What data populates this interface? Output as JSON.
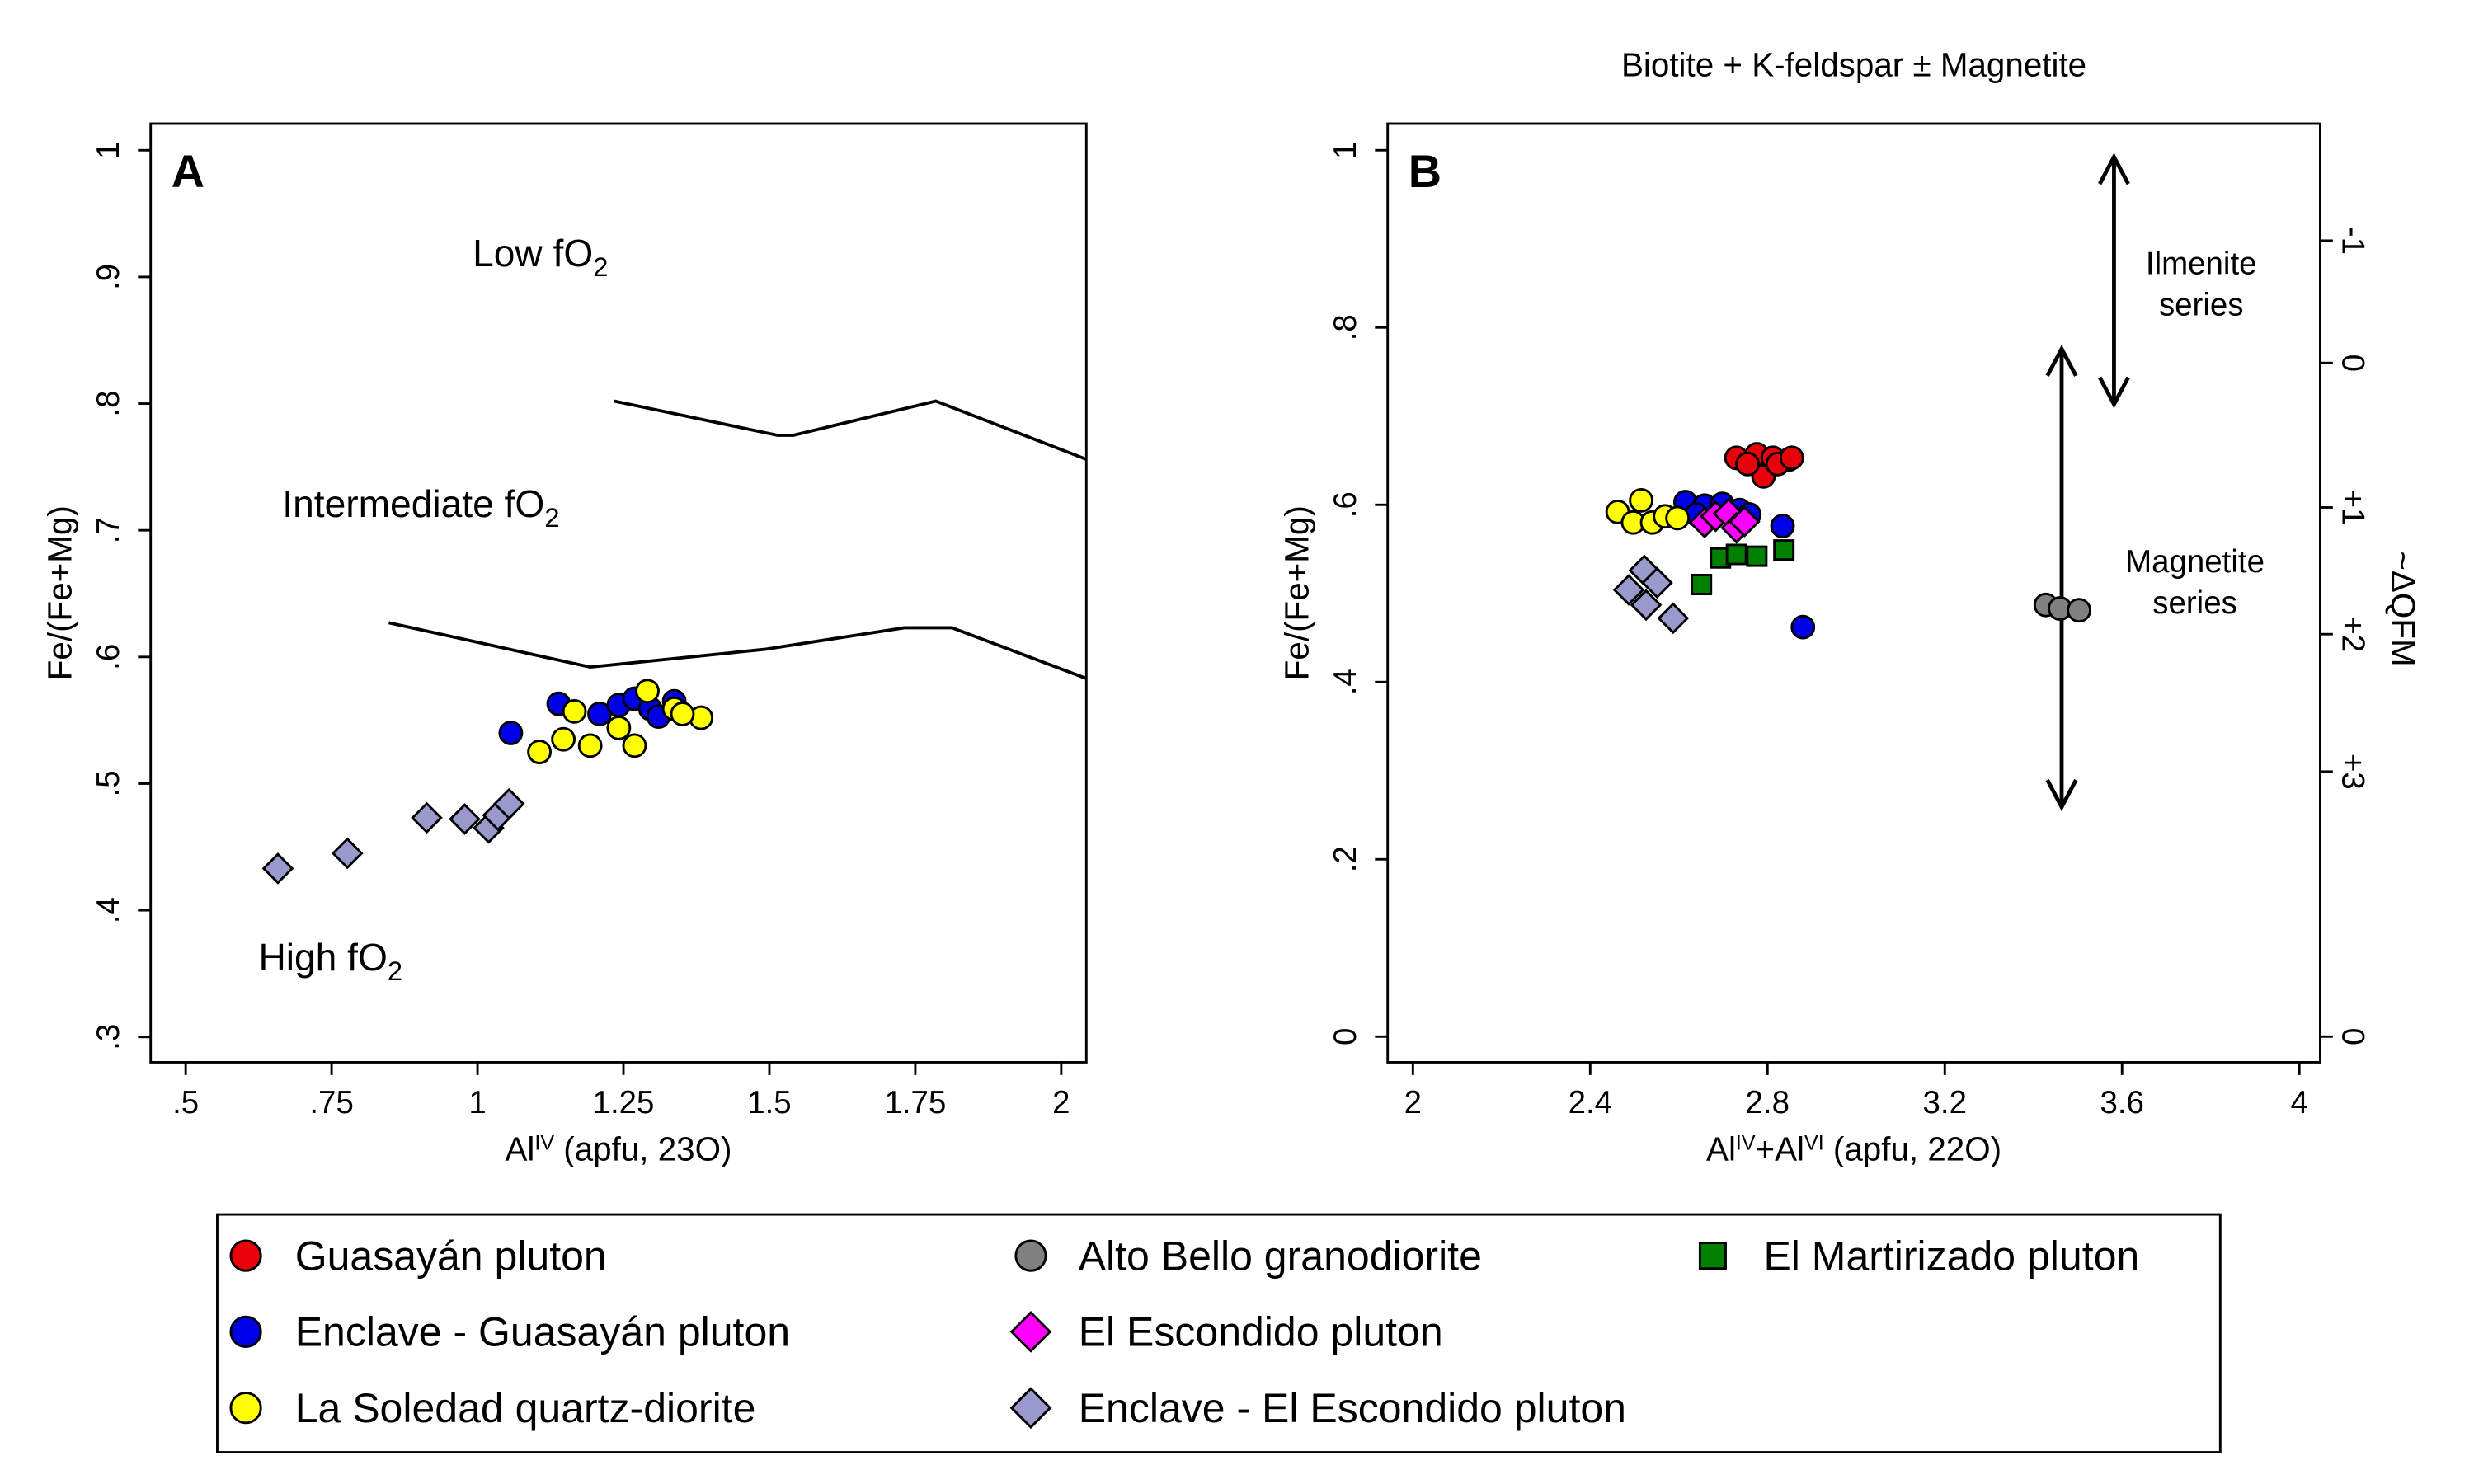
{
  "chart_data": [
    {
      "type": "scatter",
      "panel": "A",
      "xlabel": [
        {
          "text": "Al"
        },
        {
          "sup": "IV"
        },
        {
          "text": " (apfu, 23O)"
        }
      ],
      "ylabel": "Fe/(Fe+Mg)",
      "xlim": [
        0.44,
        2.043
      ],
      "ylim": [
        0.28,
        1.021
      ],
      "xticks": [
        {
          "value": 0.5,
          "label": ".5"
        },
        {
          "value": 0.75,
          "label": ".75"
        },
        1,
        {
          "value": 1.25,
          "label": "1.25"
        },
        {
          "value": 1.5,
          "label": "1.5"
        },
        {
          "value": 1.75,
          "label": "1.75"
        },
        2
      ],
      "yticks": [
        {
          "value": 0.3,
          "label": ".3"
        },
        {
          "value": 0.4,
          "label": ".4"
        },
        {
          "value": 0.5,
          "label": ".5"
        },
        {
          "value": 0.6,
          "label": ".6"
        },
        {
          "value": 0.7,
          "label": ".7"
        },
        {
          "value": 0.8,
          "label": ".8"
        },
        {
          "value": 0.9,
          "label": ".9"
        },
        1
      ],
      "annotations": [
        {
          "text": "Low fO",
          "sub": "2"
        },
        {
          "text": "Intermediate fO",
          "sub": "2"
        },
        {
          "text": "High fO",
          "sub": "2"
        }
      ],
      "curves": [
        {
          "color": "#000000",
          "x": [
            1.234,
            1.514,
            1.541,
            1.785,
            2.043
          ],
          "y": [
            0.802,
            0.775,
            0.775,
            0.802,
            0.756
          ]
        },
        {
          "color": "#000000",
          "x": [
            0.848,
            1.193,
            1.492,
            1.731,
            1.813,
            2.043
          ],
          "y": [
            0.627,
            0.592,
            0.606,
            0.623,
            0.623,
            0.583
          ]
        }
      ],
      "series": [
        {
          "color": "#0000e6",
          "marker": "circle",
          "x": [
            1.057,
            1.139,
            1.209,
            1.242,
            1.269,
            1.296,
            1.337,
            1.31
          ],
          "values": [
            0.54,
            0.563,
            0.555,
            0.562,
            0.567,
            0.559,
            0.565,
            0.553
          ]
        },
        {
          "color": "#ffff00",
          "marker": "circle",
          "x": [
            1.106,
            1.147,
            1.193,
            1.242,
            1.269,
            1.291,
            1.337,
            1.383,
            1.166,
            1.351
          ],
          "values": [
            0.525,
            0.535,
            0.53,
            0.544,
            0.53,
            0.573,
            0.559,
            0.552,
            0.557,
            0.555
          ]
        },
        {
          "color": "#9999cc",
          "marker": "diamond",
          "x": [
            0.658,
            0.777,
            0.913,
            0.978,
            1.019,
            1.035,
            1.054
          ],
          "values": [
            0.433,
            0.445,
            0.473,
            0.472,
            0.465,
            0.475,
            0.484
          ]
        }
      ]
    },
    {
      "type": "scatter",
      "panel": "B",
      "title": "Biotite + K-feldspar ± Magnetite",
      "xlabel": [
        {
          "text": "Al"
        },
        {
          "sup": "IV"
        },
        {
          "text": "+Al"
        },
        {
          "sup": "VI"
        },
        {
          "text": " (apfu, 22O)"
        }
      ],
      "ylabel": "Fe/(Fe+Mg)",
      "y2label": "~ΔQFM",
      "xlim": [
        1.943,
        4.047
      ],
      "ylim": [
        -0.029,
        1.03
      ],
      "xticks": [
        2,
        2.4,
        2.8,
        3.2,
        3.6,
        4
      ],
      "yticks": [
        0,
        {
          "value": 0.2,
          "label": ".2"
        },
        {
          "value": 0.4,
          "label": ".4"
        },
        {
          "value": 0.6,
          "label": ".6"
        },
        {
          "value": 0.8,
          "label": ".8"
        },
        1
      ],
      "y2ticks": [
        {
          "value": 0.898,
          "label": "-1"
        },
        {
          "value": 0.76,
          "label": "0"
        },
        {
          "value": 0.597,
          "label": "+1"
        },
        {
          "value": 0.454,
          "label": "+2"
        },
        {
          "value": 0.299,
          "label": "+3"
        },
        0
      ],
      "annotations": [
        {
          "lines": [
            "Ilmenite",
            "series"
          ]
        },
        {
          "lines": [
            "Magnetite",
            "series"
          ]
        }
      ],
      "series": [
        {
          "name": "Guasayán pluton",
          "color": "#e8000b",
          "marker": "circle",
          "x": [
            2.73,
            2.776,
            2.812,
            2.848,
            2.791,
            2.823,
            2.855,
            2.755
          ],
          "values": [
            0.653,
            0.657,
            0.653,
            0.651,
            0.632,
            0.646,
            0.653,
            0.646
          ]
        },
        {
          "name": "Enclave - Guasayán pluton",
          "color": "#0000e6",
          "marker": "circle",
          "x": [
            2.615,
            2.658,
            2.698,
            2.737,
            2.759,
            2.834,
            2.88,
            2.64
          ],
          "values": [
            0.603,
            0.599,
            0.601,
            0.594,
            0.589,
            0.576,
            0.462,
            0.589
          ]
        },
        {
          "name": "La Soledad quartz-diorite",
          "color": "#ffff00",
          "marker": "circle",
          "x": [
            2.462,
            2.497,
            2.515,
            2.54,
            2.569,
            2.597
          ],
          "values": [
            0.592,
            0.58,
            0.605,
            0.58,
            0.587,
            0.585
          ]
        },
        {
          "name": "Alto Bello granodiorite",
          "color": "#808080",
          "marker": "circle",
          "x": [
            3.428,
            3.46,
            3.503
          ],
          "values": [
            0.487,
            0.483,
            0.481
          ]
        },
        {
          "name": "El Escondido pluton",
          "color": "#ff00ff",
          "marker": "diamond",
          "x": [
            2.658,
            2.683,
            2.712,
            2.73,
            2.748
          ],
          "values": [
            0.58,
            0.587,
            0.59,
            0.574,
            0.581
          ]
        },
        {
          "name": "Enclave - El Escondido pluton",
          "color": "#9999cc",
          "marker": "diamond",
          "x": [
            2.487,
            2.522,
            2.551,
            2.526,
            2.587
          ],
          "values": [
            0.504,
            0.526,
            0.512,
            0.487,
            0.472
          ]
        },
        {
          "name": "El Martirizado pluton",
          "color": "#008000",
          "marker": "square",
          "x": [
            2.651,
            2.694,
            2.73,
            2.776,
            2.837
          ],
          "values": [
            0.51,
            0.54,
            0.544,
            0.542,
            0.549
          ]
        }
      ]
    }
  ]
}
